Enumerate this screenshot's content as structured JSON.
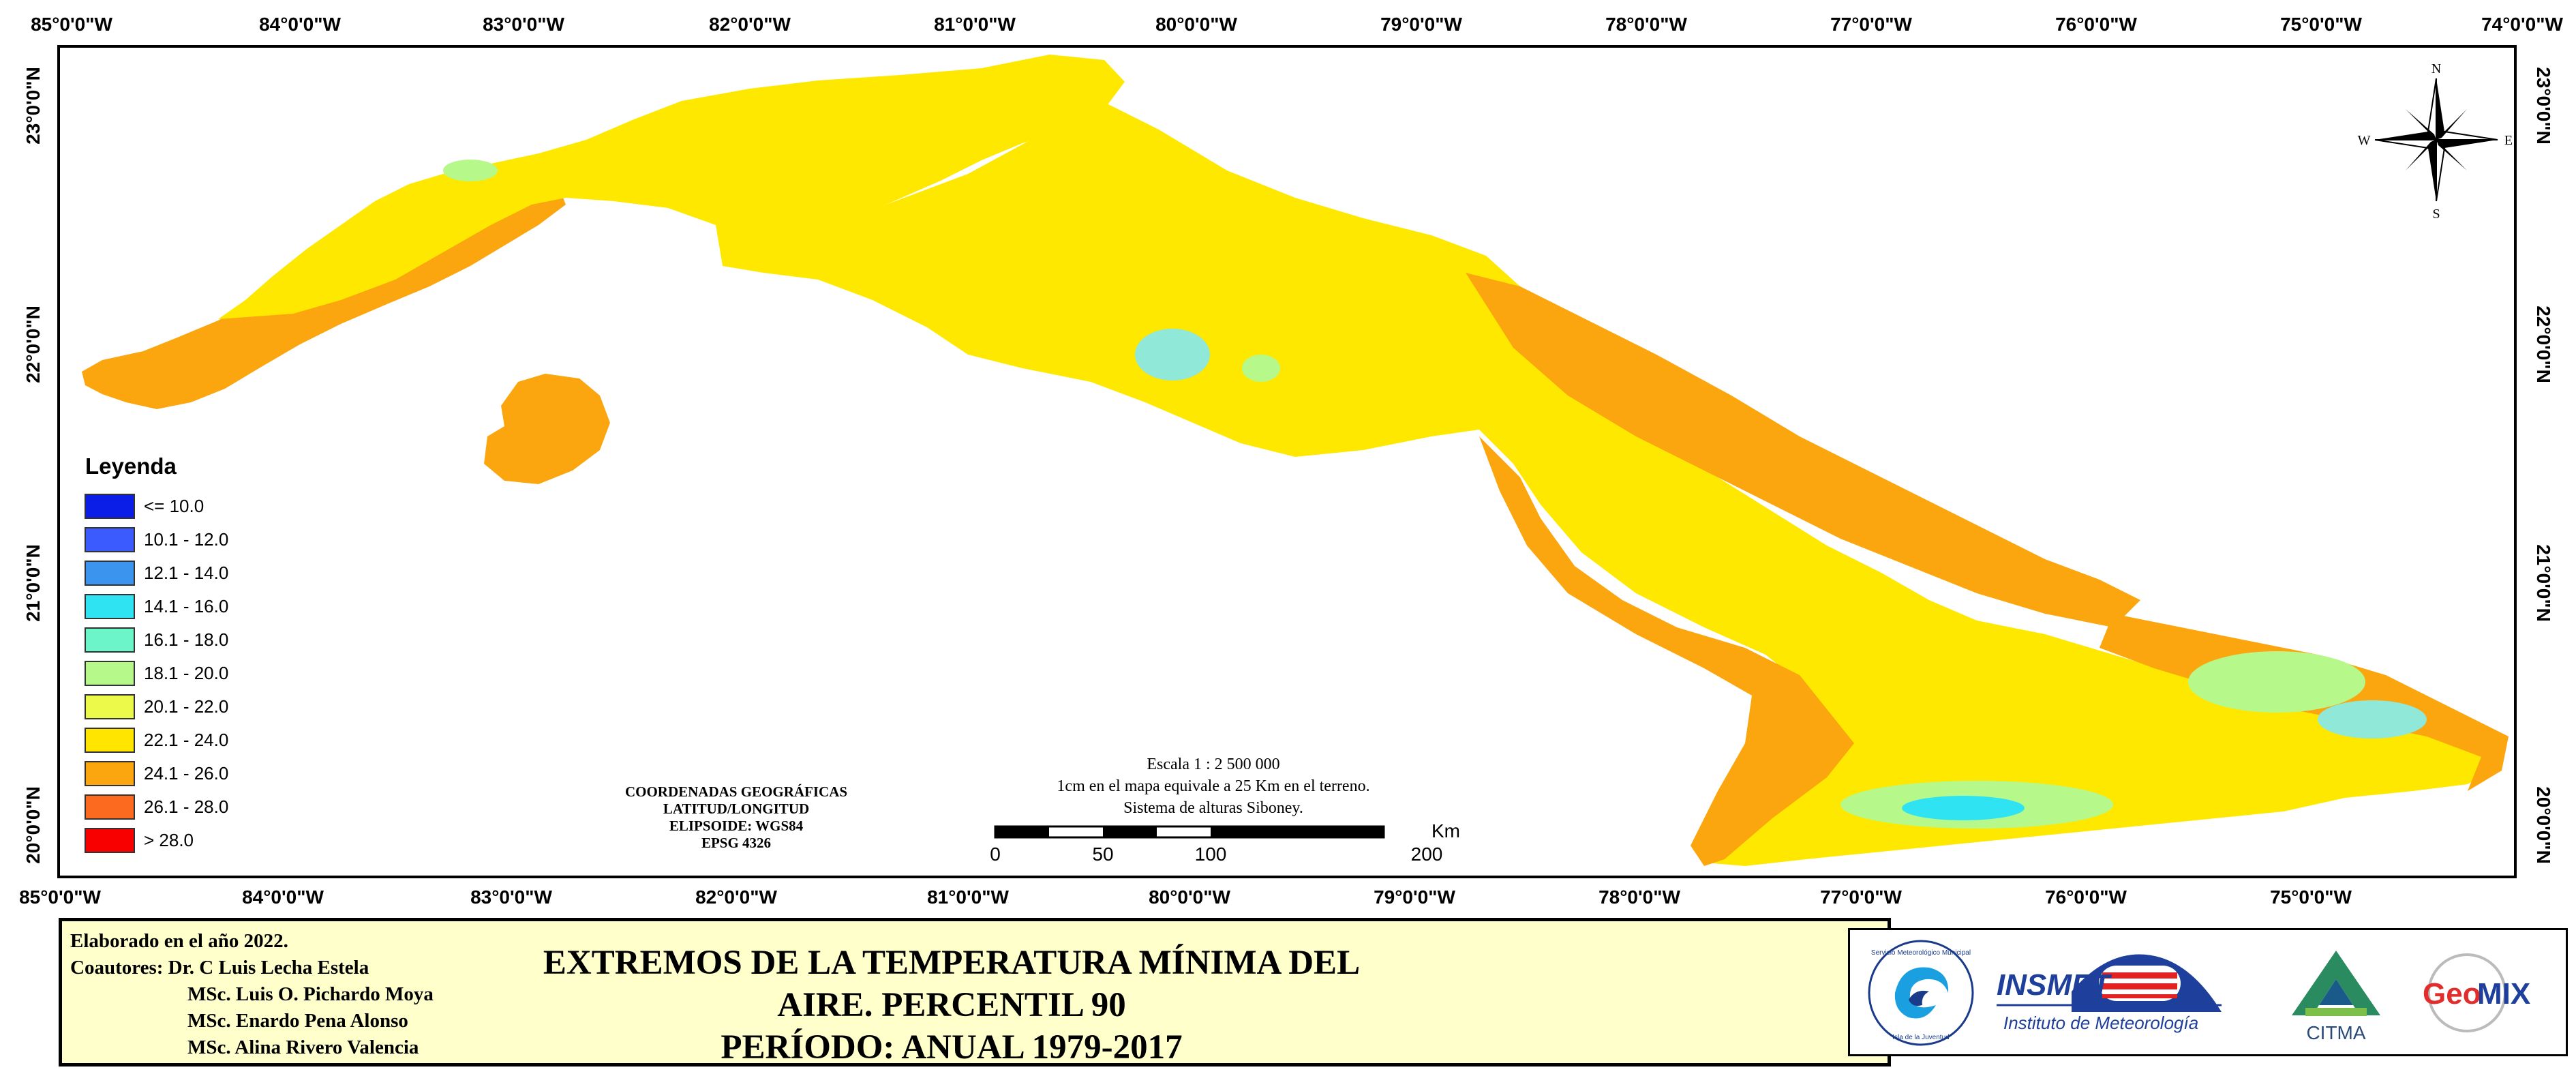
{
  "map": {
    "lon_labels": [
      "85°0'0\"W",
      "84°0'0\"W",
      "83°0'0\"W",
      "82°0'0\"W",
      "81°0'0\"W",
      "80°0'0\"W",
      "79°0'0\"W",
      "78°0'0\"W",
      "77°0'0\"W",
      "76°0'0\"W",
      "75°0'0\"W",
      "74°0'0\"W"
    ],
    "lat_labels": [
      "23°0'0\"N",
      "22°0'0\"N",
      "21°0'0\"N",
      "20°0'0\"N"
    ],
    "compass": {
      "n": "N",
      "s": "S",
      "e": "E",
      "w": "W"
    }
  },
  "legend": {
    "title": "Leyenda",
    "items": [
      {
        "label": "<= 10.0",
        "color": "#0b1ee8"
      },
      {
        "label": "10.1 - 12.0",
        "color": "#3b5bff"
      },
      {
        "label": "12.1 - 14.0",
        "color": "#3b95ef"
      },
      {
        "label": "14.1 - 16.0",
        "color": "#2fe3f2"
      },
      {
        "label": "16.1 - 18.0",
        "color": "#6cf5c8"
      },
      {
        "label": "18.1 - 20.0",
        "color": "#b6f98a"
      },
      {
        "label": "20.1 - 22.0",
        "color": "#ecf84a"
      },
      {
        "label": "22.1 - 24.0",
        "color": "#ffe500"
      },
      {
        "label": "24.1 - 26.0",
        "color": "#fba60f"
      },
      {
        "label": "26.1 - 28.0",
        "color": "#fb6a1e"
      },
      {
        "label": "> 28.0",
        "color": "#f90000"
      }
    ]
  },
  "coords_block": [
    "COORDENADAS GEOGRÁFICAS",
    "LATITUD/LONGITUD",
    "ELIPSOIDE: WGS84",
    "EPSG 4326"
  ],
  "scale": {
    "lines": [
      "Escala 1 : 2 500 000",
      "1cm en el mapa equivale a 25 Km en el terreno.",
      "Sistema de alturas Siboney."
    ],
    "ticks": [
      "0",
      "50",
      "100",
      "200"
    ],
    "unit": "Km"
  },
  "footer": {
    "made": "Elaborado en el año 2022.",
    "coauthors_label": "Coautores: Dr. C Luis Lecha Estela",
    "authors": [
      "MSc. Luis O. Pichardo Moya",
      "MSc. Enardo Pena Alonso",
      "MSc. Alina Rivero Valencia"
    ],
    "title_line1": "EXTREMOS DE LA TEMPERATURA MÍNIMA DEL AIRE. PERCENTIL 90",
    "title_line2": "PERÍODO: ANUAL 1979-2017"
  },
  "logos": {
    "isla_top": "Servicio Meteorológico Municipal",
    "isla_bottom": "Isla de la Juventud",
    "insmet": "INSMET",
    "insmet_sub": "Instituto de Meteorología",
    "citma": "CITMA",
    "geomix_a": "Geo",
    "geomix_b": "MIX"
  },
  "colors": {
    "yellow": "#ffe800",
    "orange": "#fba60f",
    "cyan_patch": "#8fe8d8",
    "footer_bg": "#ffffcc"
  }
}
